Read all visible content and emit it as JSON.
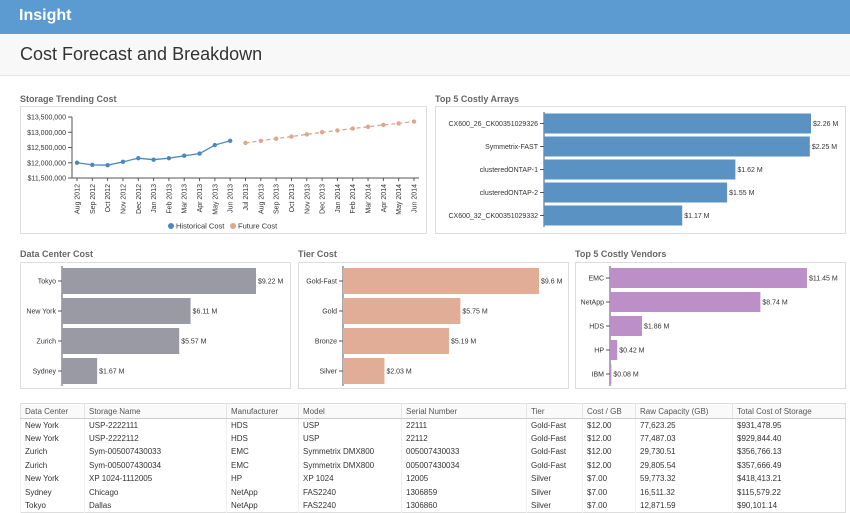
{
  "app": {
    "title": "Insight"
  },
  "page": {
    "title": "Cost Forecast and Breakdown"
  },
  "sections": {
    "trend": "Storage Trending Cost",
    "arrays": "Top 5 Costly Arrays",
    "datacenter": "Data Center Cost",
    "tier": "Tier Cost",
    "vendors": "Top 5 Costly Vendors"
  },
  "colors": {
    "topbar": "#5c9bd1",
    "historical": "#4a89bf",
    "future": "#e0a58a",
    "arrays": "#5b92c4",
    "datacenter": "#9a9aa5",
    "tier": "#e2ad96",
    "vendors": "#bd8fc9"
  },
  "charts": {
    "trend": {
      "type": "line",
      "x": [
        "Aug 2012",
        "Sep 2012",
        "Oct 2012",
        "Nov 2012",
        "Dec 2012",
        "Jan 2013",
        "Feb 2013",
        "Mar 2013",
        "Apr 2013",
        "May 2013",
        "Jun 2013",
        "Jul 2013",
        "Aug 2013",
        "Sep 2013",
        "Oct 2013",
        "Nov 2013",
        "Dec 2013",
        "Jan 2014",
        "Feb 2014",
        "Mar 2014",
        "Apr 2014",
        "May 2014",
        "Jun 2014"
      ],
      "series": [
        {
          "name": "Historical Cost",
          "values": [
            12000000,
            11930000,
            11920000,
            12030000,
            12150000,
            12100000,
            12150000,
            12230000,
            12300000,
            12580000,
            12720000,
            null,
            null,
            null,
            null,
            null,
            null,
            null,
            null,
            null,
            null,
            null,
            null
          ]
        },
        {
          "name": "Future Cost",
          "values": [
            null,
            null,
            null,
            null,
            null,
            null,
            null,
            null,
            null,
            null,
            null,
            12650000,
            12720000,
            12790000,
            12860000,
            12930000,
            13000000,
            13060000,
            13120000,
            13180000,
            13240000,
            13290000,
            13350000
          ]
        }
      ],
      "ylim": [
        11500000,
        13500000
      ],
      "yticks": [
        11500000,
        12000000,
        12500000,
        13000000,
        13500000
      ],
      "ytick_labels": [
        "$11,500,000",
        "$12,000,000",
        "$12,500,000",
        "$13,000,000",
        "$13,500,000"
      ],
      "legend": "bottom"
    },
    "arrays": {
      "type": "bar",
      "categories": [
        "CX600_26_CK00351029326",
        "Symmetrix-FAST",
        "clusteredONTAP-1",
        "clusteredONTAP-2",
        "CX600_32_CK00351029332"
      ],
      "values": [
        2.26,
        2.25,
        1.62,
        1.55,
        1.17
      ],
      "labels": [
        "$2.26 M",
        "$2.25 M",
        "$1.62 M",
        "$1.55 M",
        "$1.17 M"
      ],
      "max": 2.26
    },
    "datacenter": {
      "type": "bar",
      "categories": [
        "Tokyo",
        "New York",
        "Zurich",
        "Sydney"
      ],
      "values": [
        9.22,
        6.11,
        5.57,
        1.67
      ],
      "labels": [
        "$9.22 M",
        "$6.11 M",
        "$5.57 M",
        "$1.67 M"
      ],
      "max": 9.22
    },
    "tier": {
      "type": "bar",
      "categories": [
        "Gold-Fast",
        "Gold",
        "Bronze",
        "Silver"
      ],
      "values": [
        9.6,
        5.75,
        5.19,
        2.03
      ],
      "labels": [
        "$9.6 M",
        "$5.75 M",
        "$5.19 M",
        "$2.03 M"
      ],
      "max": 9.6
    },
    "vendors": {
      "type": "bar",
      "categories": [
        "EMC",
        "NetApp",
        "HDS",
        "HP",
        "IBM"
      ],
      "values": [
        11.45,
        8.74,
        1.86,
        0.42,
        0.08
      ],
      "labels": [
        "$11.45 M",
        "$8.74 M",
        "$1.86 M",
        "$0.42 M",
        "$0.08 M"
      ],
      "max": 11.45
    }
  },
  "table": {
    "columns": [
      "Data Center",
      "Storage Name",
      "Manufacturer",
      "Model",
      "Serial Number",
      "Tier",
      "Cost / GB",
      "Raw Capacity (GB)",
      "Total Cost of Storage"
    ],
    "rows": [
      [
        "New York",
        "USP-2222111",
        "HDS",
        "USP",
        "22111",
        "Gold-Fast",
        "$12.00",
        "77,623.25",
        "$931,478.95"
      ],
      [
        "New York",
        "USP-2222112",
        "HDS",
        "USP",
        "22112",
        "Gold-Fast",
        "$12.00",
        "77,487.03",
        "$929,844.40"
      ],
      [
        "Zurich",
        "Sym-005007430033",
        "EMC",
        "Symmetrix DMX800",
        "005007430033",
        "Gold-Fast",
        "$12.00",
        "29,730.51",
        "$356,766.13"
      ],
      [
        "Zurich",
        "Sym-005007430034",
        "EMC",
        "Symmetrix DMX800",
        "005007430034",
        "Gold-Fast",
        "$12.00",
        "29,805.54",
        "$357,666.49"
      ],
      [
        "New York",
        "XP 1024-1112005",
        "HP",
        "XP 1024",
        "12005",
        "Silver",
        "$7.00",
        "59,773.32",
        "$418,413.21"
      ],
      [
        "Sydney",
        "Chicago",
        "NetApp",
        "FAS2240",
        "1306859",
        "Silver",
        "$7.00",
        "16,511.32",
        "$115,579.22"
      ],
      [
        "Tokyo",
        "Dallas",
        "NetApp",
        "FAS2240",
        "1306860",
        "Silver",
        "$7.00",
        "12,871.59",
        "$90,101.14"
      ]
    ]
  }
}
